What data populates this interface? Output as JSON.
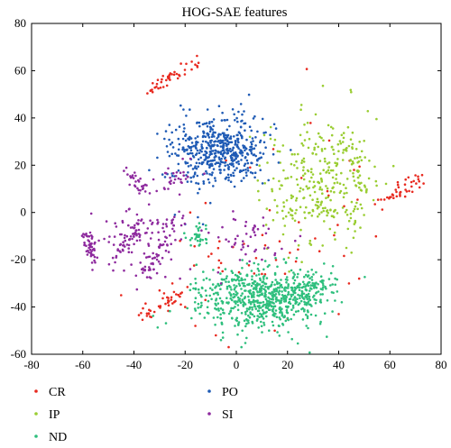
{
  "chart_data": {
    "type": "scatter",
    "title": "HOG-SAE features",
    "xlabel": "",
    "ylabel": "",
    "xlim": [
      -80,
      80
    ],
    "ylim": [
      -60,
      80
    ],
    "xticks": [
      -80,
      -60,
      -40,
      -20,
      0,
      20,
      40,
      60,
      80
    ],
    "yticks": [
      -60,
      -40,
      -20,
      0,
      20,
      40,
      60,
      80
    ],
    "grid": false,
    "legend_position": "bottom",
    "series": [
      {
        "name": "CR",
        "color": "#e8291f",
        "clusters": [
          {
            "kind": "line",
            "from": [
              -37,
              49
            ],
            "to": [
              -15,
              65
            ],
            "n": 45,
            "spread": 1.5
          },
          {
            "kind": "line",
            "from": [
              -38,
              -43
            ],
            "to": [
              -22,
              -36
            ],
            "n": 40,
            "spread": 2
          },
          {
            "kind": "line",
            "from": [
              56,
              5
            ],
            "to": [
              73,
              14
            ],
            "n": 40,
            "spread": 1.8
          },
          {
            "kind": "blob",
            "center": [
              5,
              -20
            ],
            "sd": [
              14,
              7
            ],
            "n": 30
          },
          {
            "kind": "blob",
            "center": [
              30,
              15
            ],
            "sd": [
              12,
              12
            ],
            "n": 18
          }
        ],
        "points": [
          [
            -18,
            0
          ],
          [
            -22,
            -12
          ],
          [
            -12,
            4
          ],
          [
            -45,
            -35
          ],
          [
            48,
            -28
          ],
          [
            44,
            -30
          ],
          [
            -16,
            -48
          ],
          [
            -8,
            -52
          ],
          [
            -3,
            -57
          ],
          [
            15,
            -50
          ],
          [
            20,
            -45
          ],
          [
            40,
            -43
          ],
          [
            -30,
            -33
          ],
          [
            -25,
            -30
          ],
          [
            10,
            -26
          ],
          [
            -20,
            -40
          ],
          [
            46,
            18
          ],
          [
            -4,
            22
          ]
        ]
      },
      {
        "name": "IP",
        "color": "#9acd32",
        "clusters": [
          {
            "kind": "blob",
            "center": [
              32,
              15
            ],
            "sd": [
              11,
              12
            ],
            "n": 260
          },
          {
            "kind": "line",
            "from": [
              18,
              -2
            ],
            "to": [
              50,
              2
            ],
            "n": 40,
            "spread": 2
          },
          {
            "kind": "line",
            "from": [
              41,
              30
            ],
            "to": [
              50,
              8
            ],
            "n": 30,
            "spread": 1.5
          }
        ],
        "points": [
          [
            17,
            10
          ],
          [
            16,
            0
          ],
          [
            45,
            -17
          ],
          [
            43,
            -15
          ]
        ]
      },
      {
        "name": "ND",
        "color": "#2ebf7d",
        "clusters": [
          {
            "kind": "blob",
            "center": [
              8,
              -36
            ],
            "sd": [
              12,
              7
            ],
            "n": 600
          },
          {
            "kind": "blob",
            "center": [
              27,
              -33
            ],
            "sd": [
              6,
              3.5
            ],
            "n": 120
          },
          {
            "kind": "blob",
            "center": [
              -15,
              -10
            ],
            "sd": [
              2,
              2.5
            ],
            "n": 30
          }
        ],
        "points": [
          [
            -6,
            -54
          ],
          [
            2,
            -57
          ]
        ]
      },
      {
        "name": "PO",
        "color": "#1f5bb5",
        "clusters": [
          {
            "kind": "blob",
            "center": [
              -7,
              26
            ],
            "sd": [
              9,
              7
            ],
            "n": 520
          }
        ],
        "points": [
          [
            -20,
            -5
          ],
          [
            -24,
            -1
          ],
          [
            -15,
            -2
          ],
          [
            -13,
            -5
          ]
        ]
      },
      {
        "name": "SI",
        "color": "#8e2a9e",
        "clusters": [
          {
            "kind": "line",
            "from": [
              -58,
              -8
            ],
            "to": [
              -56,
              -20
            ],
            "n": 50,
            "spread": 1.5
          },
          {
            "kind": "line",
            "from": [
              -47,
              -19
            ],
            "to": [
              -38,
              -5
            ],
            "n": 40,
            "spread": 1.5
          },
          {
            "kind": "line",
            "from": [
              -35,
              -26
            ],
            "to": [
              -27,
              -10
            ],
            "n": 50,
            "spread": 1.5
          },
          {
            "kind": "line",
            "from": [
              -44,
              18
            ],
            "to": [
              -35,
              9
            ],
            "n": 30,
            "spread": 1.5
          },
          {
            "kind": "line",
            "from": [
              -40,
              -6
            ],
            "to": [
              -20,
              -3
            ],
            "n": 30,
            "spread": 2
          },
          {
            "kind": "blob",
            "center": [
              -24,
              14
            ],
            "sd": [
              3,
              3
            ],
            "n": 30
          },
          {
            "kind": "blob",
            "center": [
              4,
              -12
            ],
            "sd": [
              7,
              5
            ],
            "n": 45
          },
          {
            "kind": "blob",
            "center": [
              -40,
              -10
            ],
            "sd": [
              9,
              8
            ],
            "n": 60
          }
        ],
        "points": [
          [
            -22,
            -28
          ],
          [
            -18,
            -24
          ],
          [
            10,
            -20
          ],
          [
            15,
            -18
          ],
          [
            23,
            -12
          ],
          [
            25,
            -10
          ],
          [
            -6,
            -30
          ]
        ]
      }
    ],
    "legend": {
      "columns": [
        [
          "CR",
          "IP",
          "ND"
        ],
        [
          "PO",
          "SI"
        ]
      ]
    }
  }
}
